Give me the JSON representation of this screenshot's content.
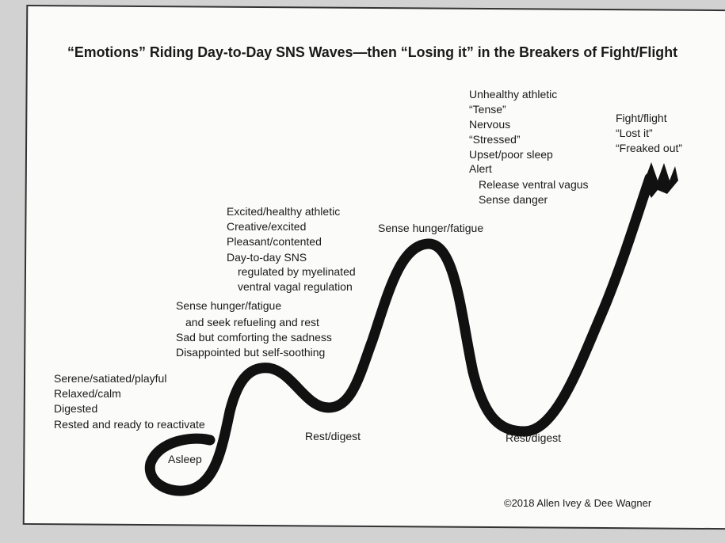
{
  "title": "“Emotions” Riding Day-to-Day SNS Waves—then “Losing it” in the Breakers of Fight/Flight",
  "labels": {
    "serene": [
      "Serene/satiated/playful",
      "Relaxed/calm",
      "Digested",
      "Rested and ready to reactivate"
    ],
    "asleep": "Asleep",
    "hunger_low": [
      "Sense hunger/fatigue",
      "and seek refueling and rest",
      "Sad but comforting the sadness",
      "Disappointed but self-soothing"
    ],
    "excited": [
      "Excited/healthy athletic",
      "Creative/excited",
      "Pleasant/contented",
      "Day-to-day SNS",
      "regulated by myelinated",
      "ventral vagal regulation"
    ],
    "rest_digest_1": "Rest/digest",
    "hunger_high": "Sense hunger/fatigue",
    "unhealthy": [
      "Unhealthy athletic",
      "“Tense”",
      "Nervous",
      "“Stressed”",
      "Upset/poor sleep",
      "Alert",
      "Release ventral vagus",
      "Sense danger"
    ],
    "rest_digest_2": "Rest/digest",
    "fight": [
      "Fight/flight",
      "“Lost it”",
      "“Freaked out”"
    ]
  },
  "copyright": "©2018 Allen Ivey & Dee Wagner"
}
